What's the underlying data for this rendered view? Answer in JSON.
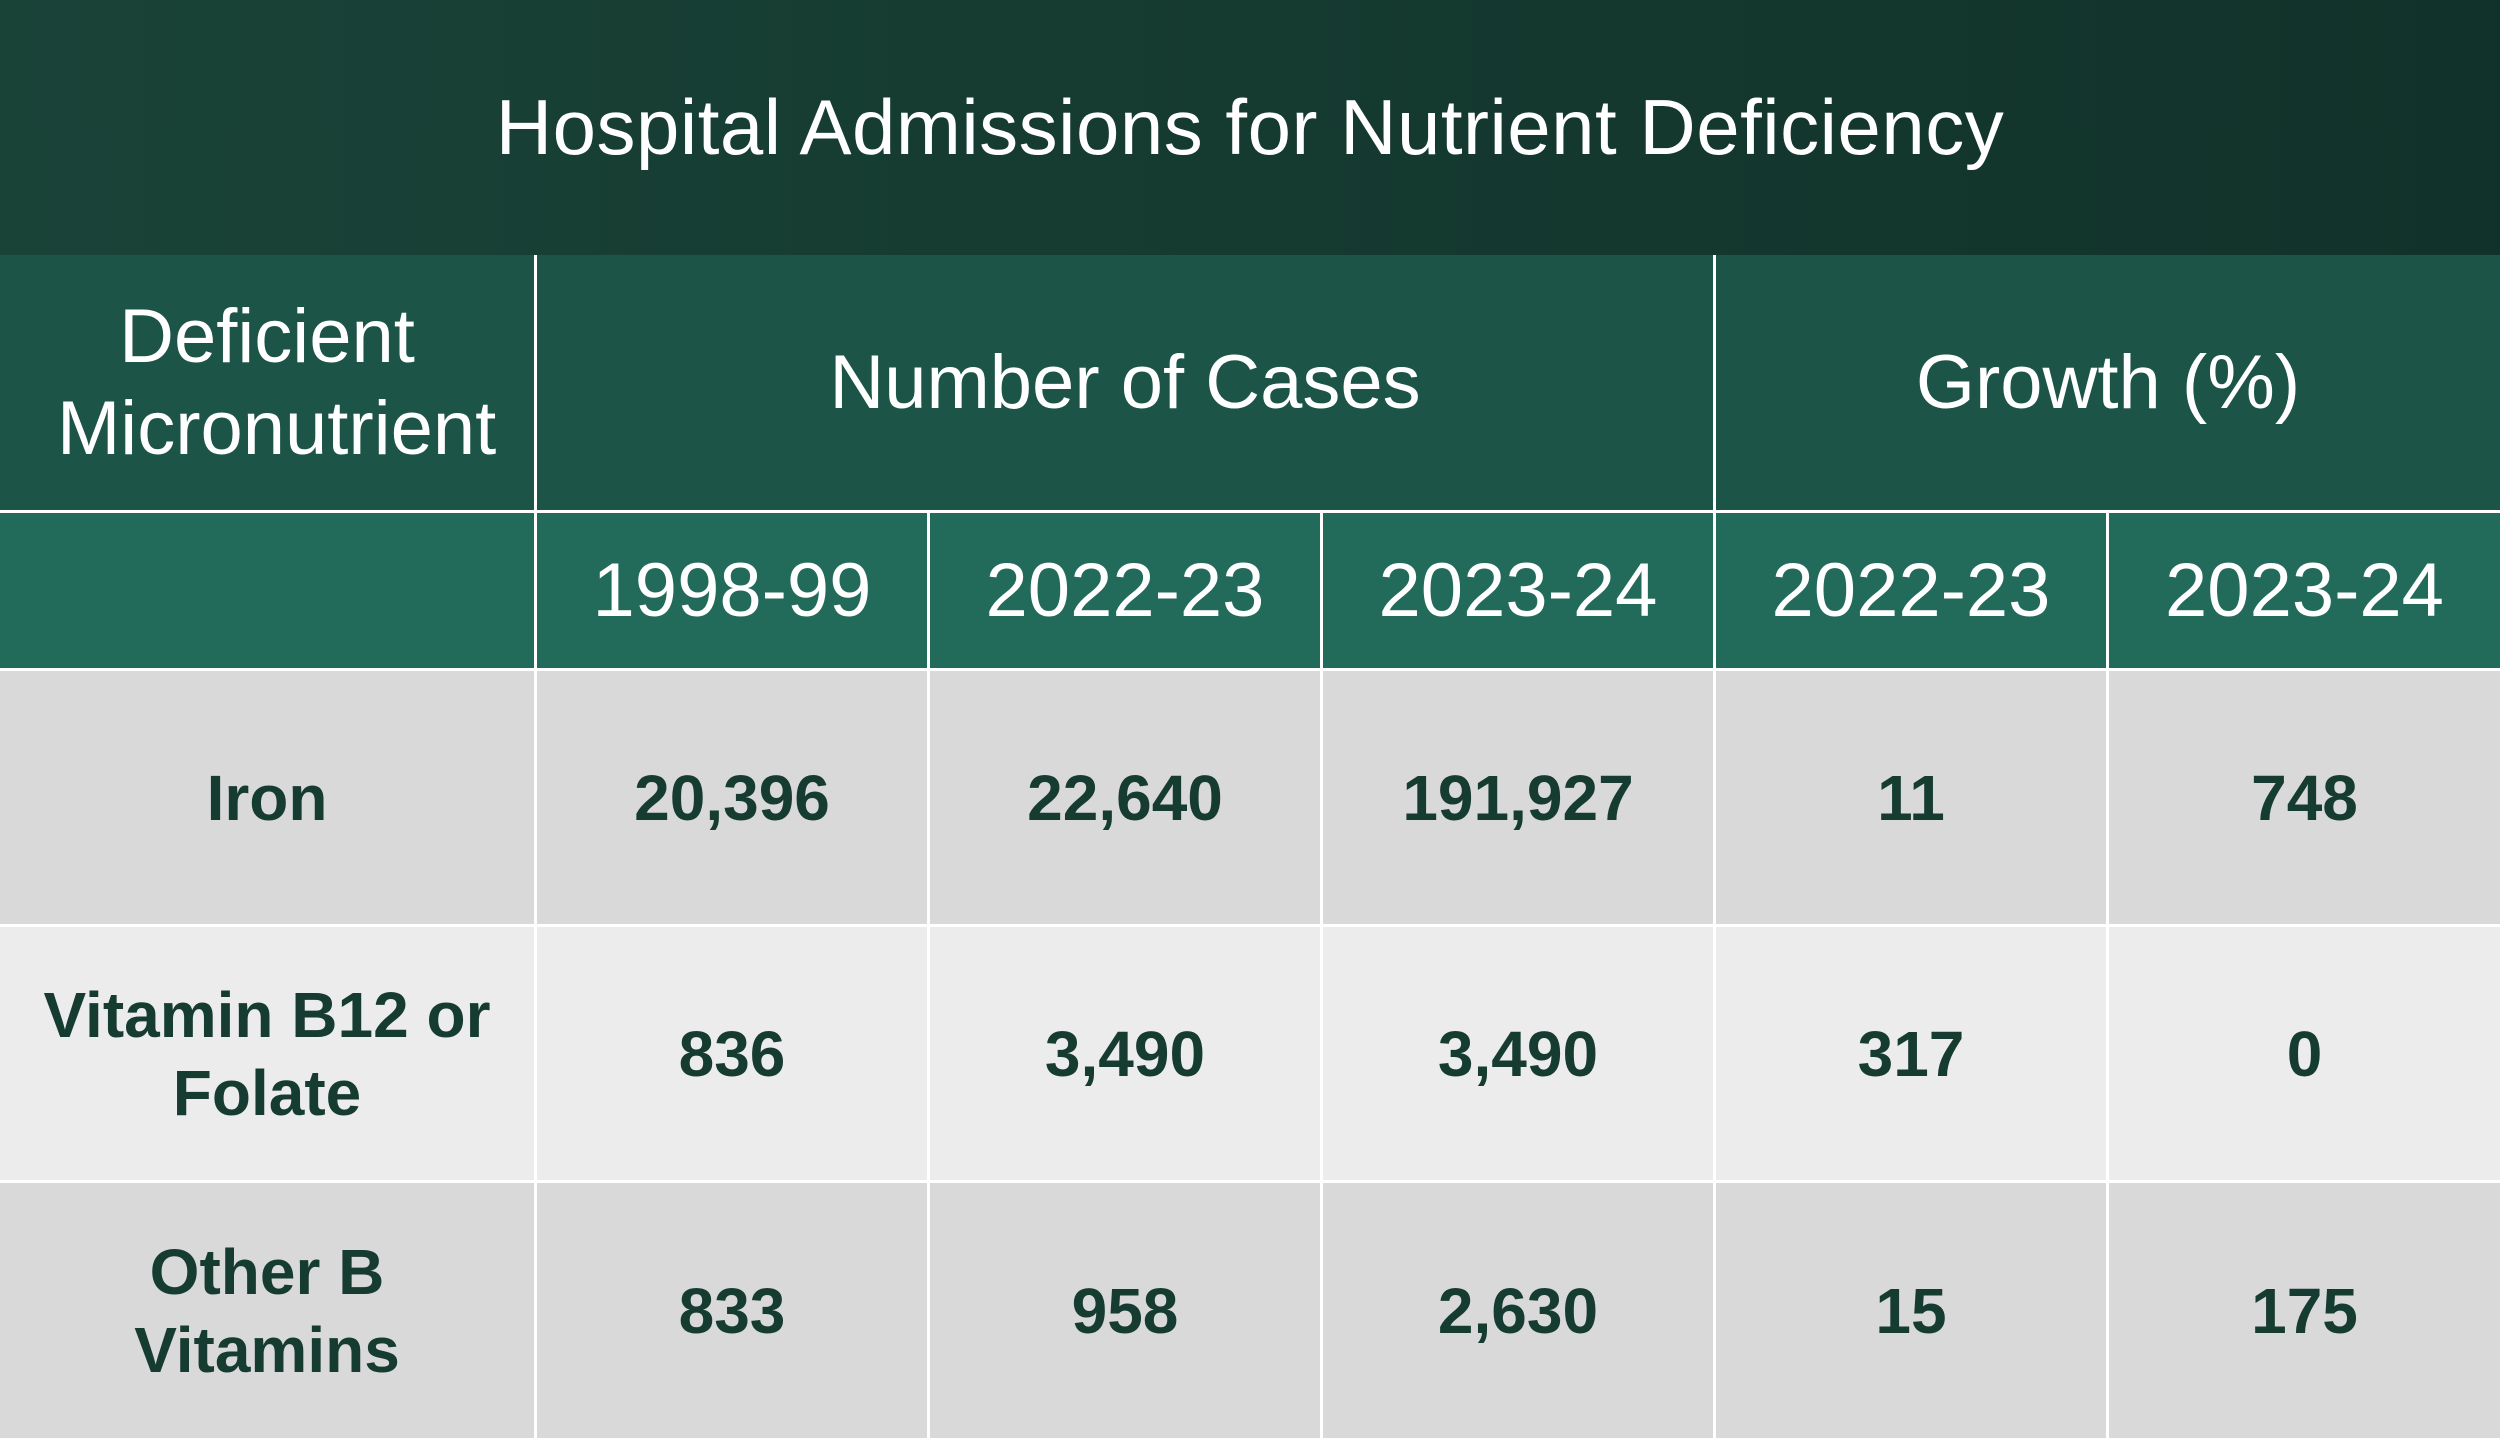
{
  "title": "Hospital Admissions for Nutrient Deficiency",
  "header": {
    "nutrient_label": "Deficient Micronutrient",
    "cases_group": "Number of Cases",
    "growth_group": "Growth (%)",
    "cases_years": [
      "1998-99",
      "2022-23",
      "2023-24"
    ],
    "growth_years": [
      "2022-23",
      "2023-24"
    ]
  },
  "rows": [
    {
      "nutrient": "Iron",
      "cases": [
        "20,396",
        "22,640",
        "191,927"
      ],
      "growth": [
        "11",
        "748"
      ]
    },
    {
      "nutrient": "Vitamin B12 or Folate",
      "cases": [
        "836",
        "3,490",
        "3,490"
      ],
      "growth": [
        "317",
        "0"
      ]
    },
    {
      "nutrient": "Other B Vitamins",
      "cases": [
        "833",
        "958",
        "2,630"
      ],
      "growth": [
        "15",
        "175"
      ]
    }
  ],
  "chart_data": {
    "type": "table",
    "title": "Hospital Admissions for Nutrient Deficiency",
    "columns": [
      "Deficient Micronutrient",
      "Number of Cases 1998-99",
      "Number of Cases 2022-23",
      "Number of Cases 2023-24",
      "Growth (%) 2022-23",
      "Growth (%) 2023-24"
    ],
    "categories": [
      "Iron",
      "Vitamin B12 or Folate",
      "Other B Vitamins"
    ],
    "series": [
      {
        "name": "Number of Cases 1998-99",
        "values": [
          20396,
          836,
          833
        ]
      },
      {
        "name": "Number of Cases 2022-23",
        "values": [
          22640,
          3490,
          958
        ]
      },
      {
        "name": "Number of Cases 2023-24",
        "values": [
          191927,
          3490,
          2630
        ]
      },
      {
        "name": "Growth (%) 2022-23",
        "values": [
          11,
          317,
          15
        ]
      },
      {
        "name": "Growth (%) 2023-24",
        "values": [
          748,
          0,
          175
        ]
      }
    ]
  },
  "colors": {
    "title_bg": "#153a30",
    "header_bg": "#1c5447",
    "subheader_bg": "#226a5a",
    "row_dark": "#d9d9d9",
    "row_light": "#ececec",
    "body_text": "#163b31"
  }
}
